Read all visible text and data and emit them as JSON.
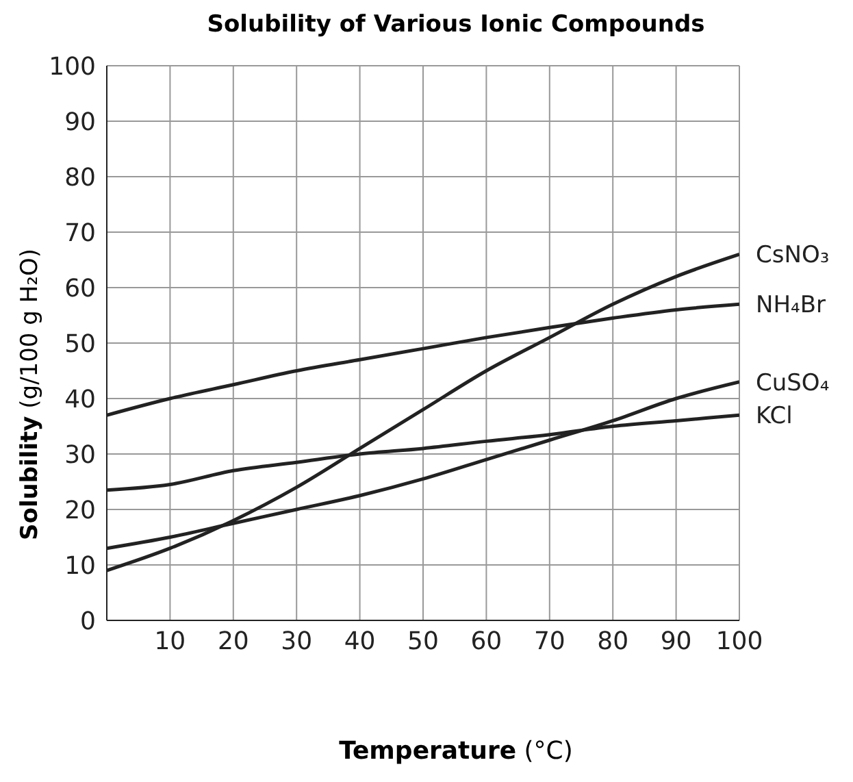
{
  "chart_data": {
    "type": "line",
    "title": "Solubility of Various Ionic Compounds",
    "xlabel": "Temperature (°C)",
    "ylabel": "Solubility (g/100 g H₂O)",
    "x": [
      0,
      10,
      20,
      30,
      40,
      50,
      60,
      70,
      80,
      90,
      100
    ],
    "series": [
      {
        "name": "CsNO₃",
        "color": "#222222",
        "values": [
          9,
          13,
          18,
          24,
          31,
          38,
          45,
          51,
          57,
          62,
          66
        ]
      },
      {
        "name": "NH₄Br",
        "color": "#222222",
        "values": [
          37,
          40,
          42.5,
          45,
          47,
          49,
          51,
          52.8,
          54.5,
          56,
          57
        ]
      },
      {
        "name": "CuSO₄",
        "color": "#222222",
        "values": [
          13,
          15,
          17.5,
          20,
          22.5,
          25.5,
          29,
          32.5,
          36,
          40,
          43
        ]
      },
      {
        "name": "KCl",
        "color": "#222222",
        "values": [
          23.5,
          24.5,
          27,
          28.5,
          30,
          31,
          32.3,
          33.5,
          35,
          36,
          37
        ]
      }
    ],
    "xlim": [
      0,
      100
    ],
    "xticks": [
      {
        "value": 0,
        "label": null
      },
      10,
      20,
      30,
      40,
      50,
      60,
      70,
      80,
      90,
      100
    ],
    "ylim": [
      0,
      100
    ],
    "yticks": [
      0,
      10,
      20,
      30,
      40,
      50,
      60,
      70,
      80,
      90,
      100
    ],
    "grid": true,
    "legend": false,
    "marker": "none",
    "line_style": "solid"
  }
}
